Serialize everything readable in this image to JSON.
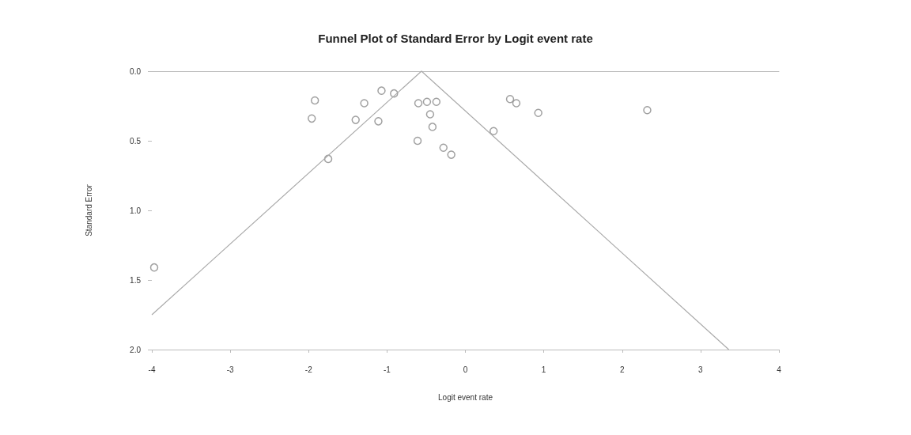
{
  "chart_data": {
    "type": "scatter",
    "title": "Funnel Plot of Standard Error by Logit event rate",
    "xlabel": "Logit event rate",
    "ylabel": "Standard Error",
    "xlim": [
      -4,
      4
    ],
    "xticks": [
      -4,
      -3,
      -2,
      -1,
      0,
      1,
      2,
      3,
      4
    ],
    "ylim": [
      2.0,
      0
    ],
    "yticks": [
      {
        "value": 0,
        "label": "0.0"
      },
      0.5,
      {
        "value": 1,
        "label": "1.0"
      },
      1.5,
      {
        "value": 2,
        "label": "2.0"
      }
    ],
    "grid": false,
    "marker": "circle",
    "series": [
      {
        "color": "#888888",
        "x": [
          -1.92,
          -1.96,
          -1.07,
          -0.91,
          -1.29,
          -1.4,
          -1.11,
          -1.75,
          -0.6,
          -0.49,
          -0.37,
          -0.45,
          -0.42,
          -0.61,
          -0.28,
          -0.18,
          0.57,
          0.65,
          0.93,
          0.36,
          2.32,
          -3.97
        ],
        "values": [
          0.21,
          0.34,
          0.14,
          0.16,
          0.23,
          0.35,
          0.36,
          0.63,
          0.23,
          0.22,
          0.22,
          0.31,
          0.4,
          0.5,
          0.55,
          0.6,
          0.2,
          0.23,
          0.3,
          0.43,
          0.28,
          1.41
        ]
      },
      {
        "type": "line",
        "color": "#aaaaaa",
        "marker": "none",
        "x": [
          -4,
          -0.56,
          3.36
        ],
        "values": [
          1.75,
          0,
          2.0
        ]
      }
    ]
  }
}
